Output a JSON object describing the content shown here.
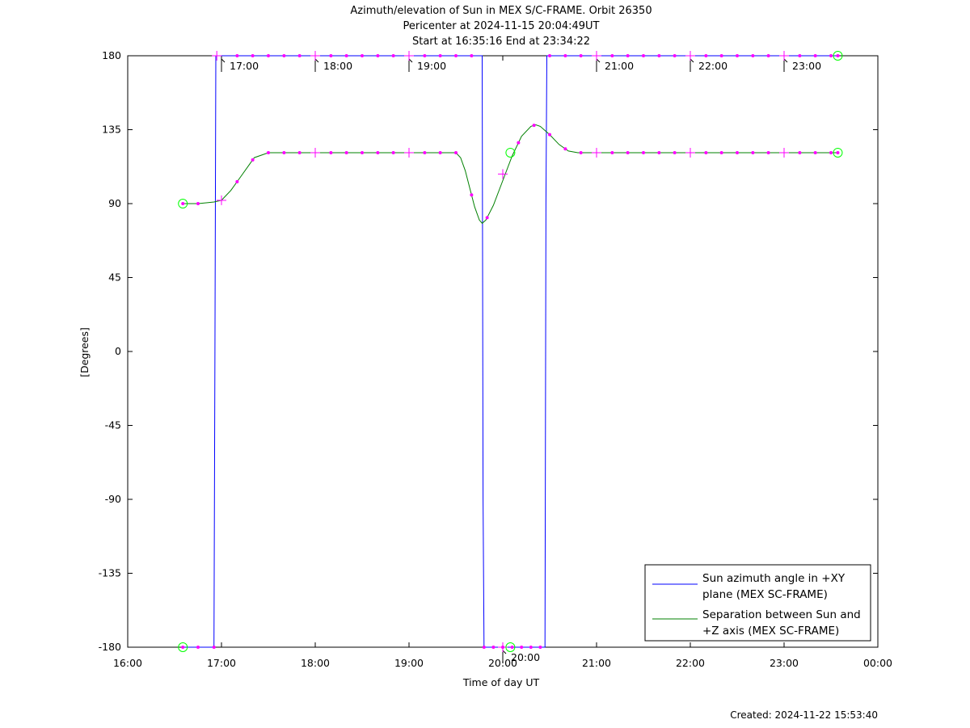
{
  "chart_data": {
    "type": "line",
    "title_lines": [
      "Azimuth/elevation of Sun in MEX S/C-FRAME.  Orbit 26350",
      "Pericenter at 2024-11-15 20:04:49UT",
      "Start at 16:35:16 End at 23:34:22"
    ],
    "xlabel": "Time of day UT",
    "ylabel": "[Degrees]",
    "created": "Created: 2024-11-22 15:53:40",
    "x_unit": "hours of day (UT)",
    "xlim": [
      16,
      24
    ],
    "ylim": [
      -180,
      180
    ],
    "x_ticks": [
      16,
      17,
      18,
      19,
      20,
      21,
      22,
      23,
      24
    ],
    "x_tick_labels": [
      "16:00",
      "17:00",
      "18:00",
      "19:00",
      "20:00",
      "21:00",
      "22:00",
      "23:00",
      "00:00"
    ],
    "y_ticks": [
      180,
      135,
      90,
      45,
      0,
      -45,
      -90,
      -135,
      -180
    ],
    "y_tick_labels": [
      "180",
      "135",
      "90",
      "45",
      "0",
      "-45",
      "-90",
      "-135",
      "-180"
    ],
    "hour_markers": [
      {
        "x": 17.0,
        "label": "17:00"
      },
      {
        "x": 18.0,
        "label": "18:00"
      },
      {
        "x": 19.0,
        "label": "19:00"
      },
      {
        "x": 20.0,
        "label": "20:00"
      },
      {
        "x": 21.0,
        "label": "21:00"
      },
      {
        "x": 22.0,
        "label": "22:00"
      },
      {
        "x": 23.0,
        "label": "23:00"
      }
    ],
    "legend_position": "bottom-right",
    "grid": false,
    "series": [
      {
        "name": "Sun azimuth angle in +XY plane (MEX SC-FRAME)",
        "legend_lines": [
          "Sun azimuth angle in +XY",
          "plane (MEX SC-FRAME)"
        ],
        "color": "#0000ff",
        "points": [
          [
            16.588,
            -180
          ],
          [
            16.92,
            -180
          ],
          [
            16.93,
            0
          ],
          [
            16.94,
            180
          ],
          [
            19.78,
            180
          ],
          [
            19.79,
            -90
          ],
          [
            19.8,
            -180
          ],
          [
            20.45,
            -180
          ],
          [
            20.46,
            90
          ],
          [
            20.47,
            180
          ],
          [
            23.573,
            180
          ]
        ]
      },
      {
        "name": "Separation between Sun and +Z axis (MEX SC-FRAME)",
        "legend_lines": [
          "Separation between Sun and",
          "+Z axis (MEX SC-FRAME)"
        ],
        "color": "#008000",
        "points": [
          [
            16.588,
            90
          ],
          [
            16.75,
            90
          ],
          [
            16.92,
            91
          ],
          [
            17.0,
            92
          ],
          [
            17.1,
            98
          ],
          [
            17.2,
            106
          ],
          [
            17.3,
            114
          ],
          [
            17.35,
            118
          ],
          [
            17.5,
            121
          ],
          [
            19.5,
            121
          ],
          [
            19.55,
            118
          ],
          [
            19.6,
            110
          ],
          [
            19.65,
            99
          ],
          [
            19.7,
            88
          ],
          [
            19.75,
            80
          ],
          [
            19.78,
            78
          ],
          [
            19.82,
            80
          ],
          [
            19.9,
            89
          ],
          [
            20.0,
            104
          ],
          [
            20.1,
            119
          ],
          [
            20.2,
            131
          ],
          [
            20.3,
            137
          ],
          [
            20.35,
            138
          ],
          [
            20.4,
            137
          ],
          [
            20.5,
            132
          ],
          [
            20.6,
            126
          ],
          [
            20.7,
            122
          ],
          [
            20.8,
            121
          ],
          [
            23.573,
            121
          ]
        ]
      }
    ],
    "sample_dots_azimuth": [
      16.588,
      16.75,
      16.92,
      17.167,
      17.333,
      17.5,
      17.667,
      17.833,
      18.167,
      18.333,
      18.5,
      18.667,
      18.833,
      19.167,
      19.333,
      19.5,
      19.667,
      20.5,
      20.667,
      20.833,
      21.167,
      21.333,
      21.5,
      21.667,
      21.833,
      22.167,
      22.333,
      22.5,
      22.667,
      22.833,
      23.167,
      23.333,
      23.5,
      23.573
    ],
    "sample_dots_azimuth_low": [
      19.8,
      19.9,
      20.0,
      20.1,
      20.2,
      20.3,
      20.4
    ],
    "sample_dots_separation": [
      16.588,
      16.75,
      17.167,
      17.333,
      17.5,
      17.667,
      17.833,
      18.167,
      18.333,
      18.5,
      18.667,
      18.833,
      19.167,
      19.333,
      19.5,
      19.667,
      19.833,
      20.167,
      20.333,
      20.5,
      20.667,
      20.833,
      21.167,
      21.333,
      21.5,
      21.667,
      21.833,
      22.167,
      22.333,
      22.5,
      22.667,
      22.833,
      23.167,
      23.333,
      23.5,
      23.573
    ],
    "plus_markers": [
      [
        16.95,
        180
      ],
      [
        17.0,
        92
      ],
      [
        18.0,
        180
      ],
      [
        18.0,
        121
      ],
      [
        19.0,
        180
      ],
      [
        19.0,
        121
      ],
      [
        20.0,
        -180
      ],
      [
        20.0,
        108
      ],
      [
        21.0,
        180
      ],
      [
        21.0,
        121
      ],
      [
        22.0,
        180
      ],
      [
        22.0,
        121
      ],
      [
        23.0,
        180
      ],
      [
        23.0,
        121
      ]
    ],
    "circle_markers": [
      [
        16.588,
        90
      ],
      [
        16.588,
        -180
      ],
      [
        20.081,
        121
      ],
      [
        20.081,
        -180
      ],
      [
        23.573,
        180
      ],
      [
        23.573,
        121
      ]
    ],
    "marker_colors": {
      "dots": "#ff00ff",
      "circles": "#00ff00",
      "axis": "#000000"
    }
  }
}
